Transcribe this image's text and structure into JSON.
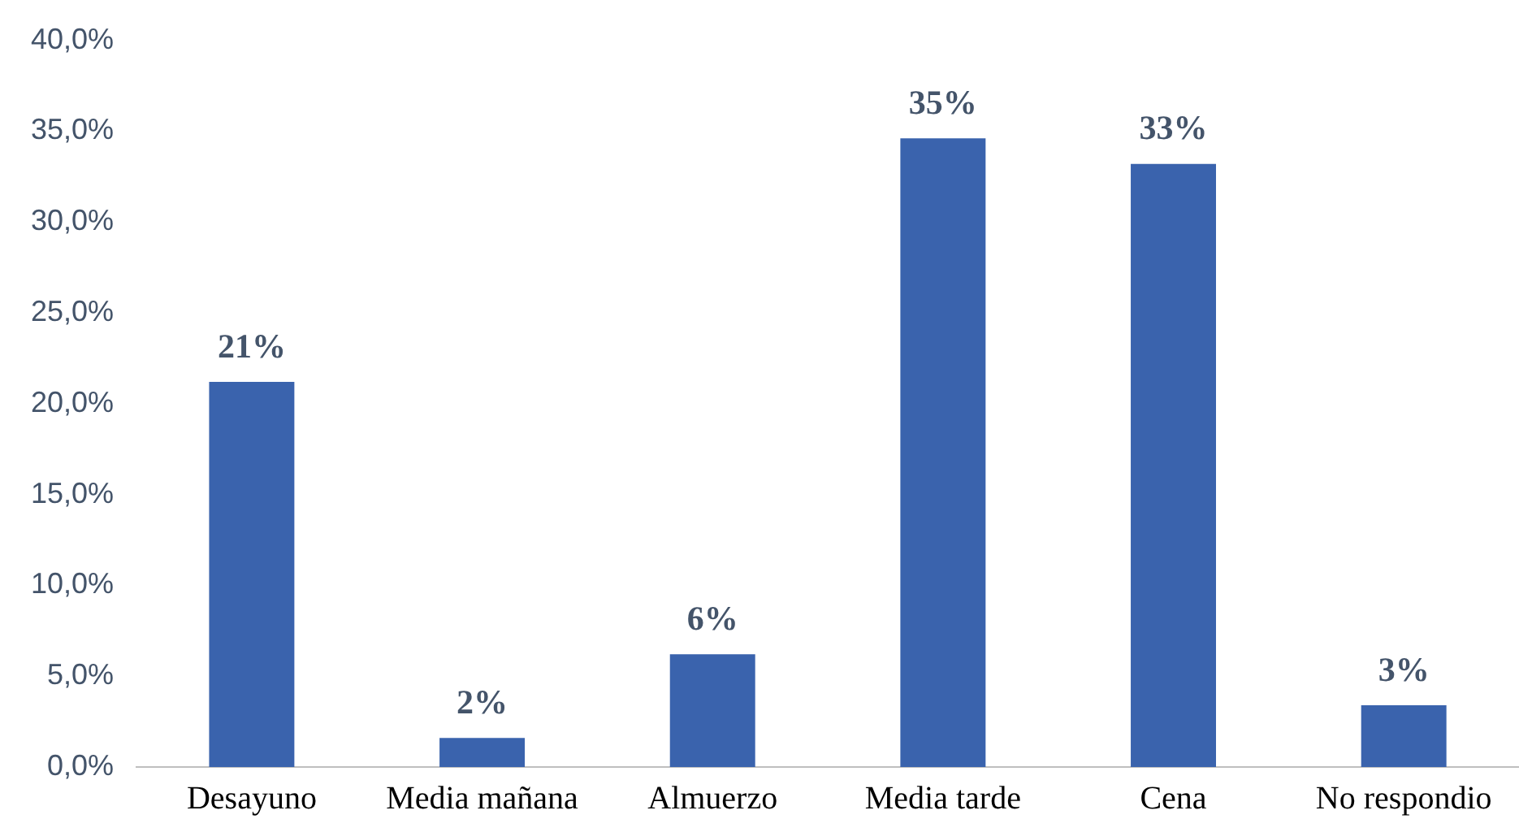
{
  "chart_data": {
    "type": "bar",
    "categories": [
      "Desayuno",
      "Media mañana",
      "Almuerzo",
      "Media tarde",
      "Cena",
      "No respondio"
    ],
    "values": [
      21.2,
      1.6,
      6.2,
      34.6,
      33.2,
      3.4
    ],
    "value_labels": [
      "21%",
      "2%",
      "6%",
      "35%",
      "33%",
      "3%"
    ],
    "color": "#3a63ad",
    "ylim": [
      0,
      40
    ],
    "yticks": [
      {
        "value": 0,
        "label": "0,0%"
      },
      {
        "value": 5,
        "label": "5,0%"
      },
      {
        "value": 10,
        "label": "10,0%"
      },
      {
        "value": 15,
        "label": "15,0%"
      },
      {
        "value": 20,
        "label": "20,0%"
      },
      {
        "value": 25,
        "label": "25,0%"
      },
      {
        "value": 30,
        "label": "30,0%"
      },
      {
        "value": 35,
        "label": "35,0%"
      },
      {
        "value": 40,
        "label": "40,0%"
      }
    ],
    "grid": false,
    "legend": false
  }
}
